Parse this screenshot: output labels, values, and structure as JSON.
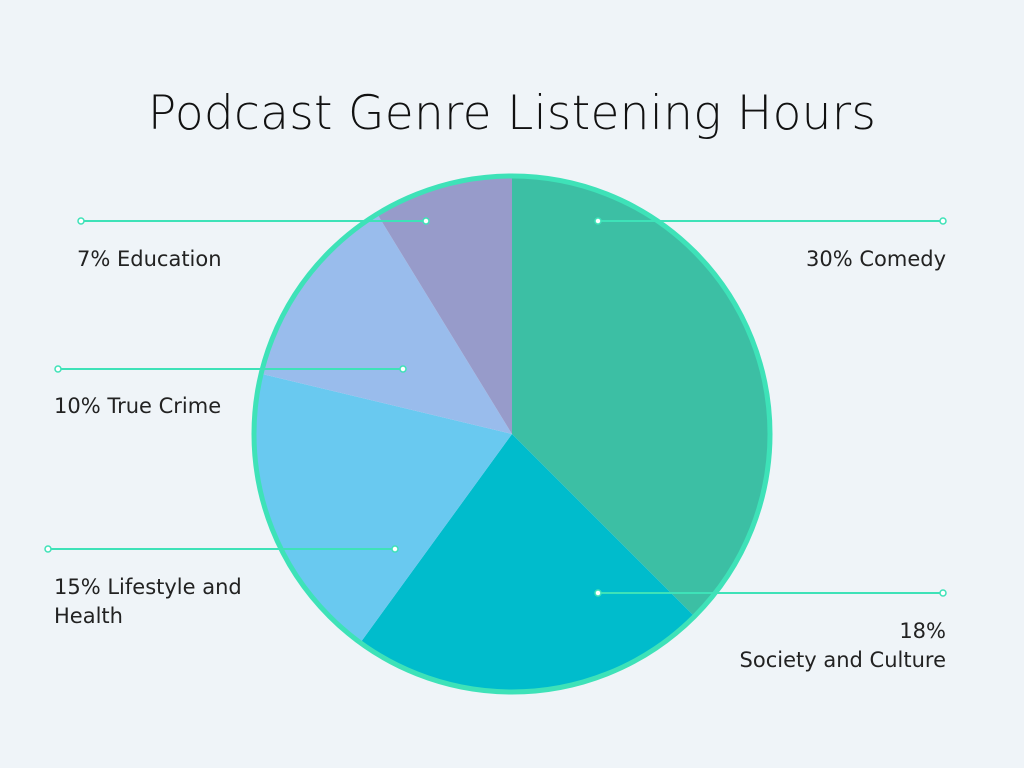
{
  "chart_data": {
    "type": "pie",
    "title": "Podcast Genre Listening Hours",
    "slices": [
      {
        "label": "Comedy",
        "percent": 30,
        "color": "#3cbfa4",
        "label_text": "30% Comedy"
      },
      {
        "label": "Society and Culture",
        "percent": 18,
        "color": "#00bccc",
        "label_line1": "18%",
        "label_line2": "Society and Culture"
      },
      {
        "label": "Lifestyle and Health",
        "percent": 15,
        "color": "#69c9f0",
        "label_line1": "15% Lifestyle and",
        "label_line2": "Health"
      },
      {
        "label": "True Crime",
        "percent": 10,
        "color": "#99bcec",
        "label_text": "10% True Crime"
      },
      {
        "label": "Education",
        "percent": 7,
        "color": "#979bca",
        "label_text": "7% Education"
      }
    ],
    "outline_color": "#3ee2b8",
    "leader_color": "#3ee2b8"
  }
}
